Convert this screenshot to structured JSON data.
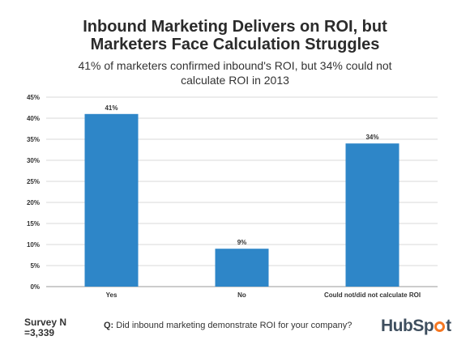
{
  "header": {
    "title_line1": "Inbound Marketing Delivers on ROI, but",
    "title_line2": "Marketers Face Calculation Struggles",
    "subtitle_line1": "41% of marketers confirmed inbound's ROI, but 34% could not",
    "subtitle_line2": "calculate ROI in 2013"
  },
  "chart_data": {
    "type": "bar",
    "categories": [
      "Yes",
      "No",
      "Could not/did not calculate ROI"
    ],
    "values": [
      41,
      9,
      34
    ],
    "data_labels": [
      "41%",
      "9%",
      "34%"
    ],
    "yticks": [
      "0%",
      "5%",
      "10%",
      "15%",
      "20%",
      "25%",
      "30%",
      "35%",
      "40%",
      "45%"
    ],
    "ylim": [
      0,
      45
    ],
    "grid": true,
    "bar_color": "#2e86c8"
  },
  "footer": {
    "survey_line1": "Survey N",
    "survey_line2": "=3,339",
    "question_prefix": "Q:",
    "question_text": "Did inbound marketing demonstrate ROI for your company?",
    "logo_left": "HubSp",
    "logo_right": "t",
    "logo_accent": "#f57722"
  }
}
